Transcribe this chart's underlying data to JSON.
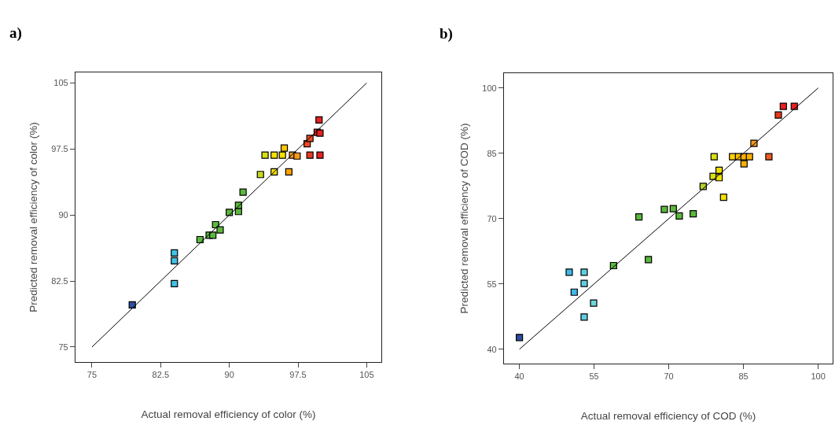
{
  "chart_data": [
    {
      "type": "scatter",
      "title": "a)",
      "xlabel": "Actual removal efficiency of color (%)",
      "ylabel": "Predicted removal efficiency of color (%)",
      "xlim": [
        73.2,
        106.6
      ],
      "ylim": [
        73.3,
        106.2
      ],
      "xticks": [
        75,
        82.5,
        90,
        97.5,
        105
      ],
      "yticks": [
        75,
        82.5,
        90,
        97.5,
        105
      ],
      "grid": false,
      "legend": false,
      "marker": "square",
      "series": [
        {
          "x": [
            79.4,
            84.0,
            84.0,
            84.0,
            86.8,
            87.8,
            88.2,
            88.5,
            89.0,
            90.0,
            91.0,
            91.0,
            91.5,
            93.4,
            93.9,
            94.9,
            94.9,
            95.8,
            96.0,
            96.9,
            97.4,
            96.5,
            98.8,
            99.9,
            98.5,
            98.8,
            99.6,
            99.9,
            99.8
          ],
          "values": [
            79.8,
            85.7,
            84.8,
            82.2,
            87.2,
            87.7,
            87.7,
            88.9,
            88.3,
            90.3,
            90.4,
            91.1,
            92.6,
            94.6,
            96.8,
            96.8,
            94.9,
            96.8,
            97.6,
            96.8,
            96.7,
            94.9,
            96.8,
            96.8,
            98.1,
            98.7,
            99.4,
            99.3,
            100.8
          ],
          "colors": [
            "#2d4da0",
            "#3fc3e6",
            "#3fc3e6",
            "#3fc3e6",
            "#5ab83c",
            "#5ab83c",
            "#5ab83c",
            "#5ab83c",
            "#5ab83c",
            "#5ab83c",
            "#5ab83c",
            "#5ab83c",
            "#5ab83c",
            "#c8d820",
            "#d8e010",
            "#f5e000",
            "#f5e000",
            "#f5e000",
            "#ffc800",
            "#f59a1e",
            "#f59a1e",
            "#ffa500",
            "#e83820",
            "#e82020",
            "#f04a20",
            "#f04a20",
            "#e82020",
            "#e82020",
            "#e82020"
          ]
        },
        {
          "type": "line",
          "x": [
            75,
            105
          ],
          "values": [
            75,
            105
          ],
          "color": "#000000",
          "marker": "none"
        }
      ]
    },
    {
      "type": "scatter",
      "title": "b)",
      "xlabel": "Actual removal efficiency of COD (%)",
      "ylabel": "Predicted removal efficiency of COD (%)",
      "xlim": [
        36.9,
        102.9
      ],
      "ylim": [
        36.7,
        103.4
      ],
      "xticks": [
        40,
        55,
        70,
        85,
        100
      ],
      "yticks": [
        40,
        55,
        70,
        85,
        100
      ],
      "grid": false,
      "legend": false,
      "marker": "square",
      "series": [
        {
          "x": [
            40.0,
            50.0,
            53.0,
            53.0,
            51.0,
            54.9,
            53.0,
            58.9,
            64.0,
            65.9,
            69.1,
            70.9,
            72.1,
            74.9,
            76.9,
            79.1,
            78.9,
            80.1,
            80.1,
            81.0,
            82.8,
            84.0,
            85.1,
            86.2,
            85.1,
            87.1,
            90.1,
            92.0,
            93.0,
            95.2
          ],
          "values": [
            42.7,
            57.7,
            57.7,
            55.1,
            53.1,
            50.6,
            47.4,
            59.2,
            70.4,
            60.6,
            72.1,
            72.3,
            70.6,
            71.1,
            77.4,
            84.2,
            79.7,
            81.1,
            79.4,
            74.9,
            84.2,
            84.2,
            84.2,
            84.2,
            82.6,
            87.3,
            84.2,
            93.8,
            95.8,
            95.8
          ],
          "colors": [
            "#2d4da0",
            "#3fb8e8",
            "#5fcfe0",
            "#5fcfe0",
            "#3fb8e8",
            "#6fd6d8",
            "#5fcfe0",
            "#5ab83c",
            "#5ab83c",
            "#5ab83c",
            "#5ab83c",
            "#5ab83c",
            "#5ab83c",
            "#5ab83c",
            "#b8d030",
            "#d8e010",
            "#d8e010",
            "#f0e000",
            "#f0e000",
            "#f5e000",
            "#ffd000",
            "#ffc000",
            "#ffb000",
            "#ffb000",
            "#ffb000",
            "#f59a1e",
            "#f05a20",
            "#e83820",
            "#e82020",
            "#e82020"
          ]
        },
        {
          "type": "line",
          "x": [
            40,
            100
          ],
          "values": [
            40,
            100
          ],
          "color": "#000000",
          "marker": "none"
        }
      ]
    }
  ]
}
